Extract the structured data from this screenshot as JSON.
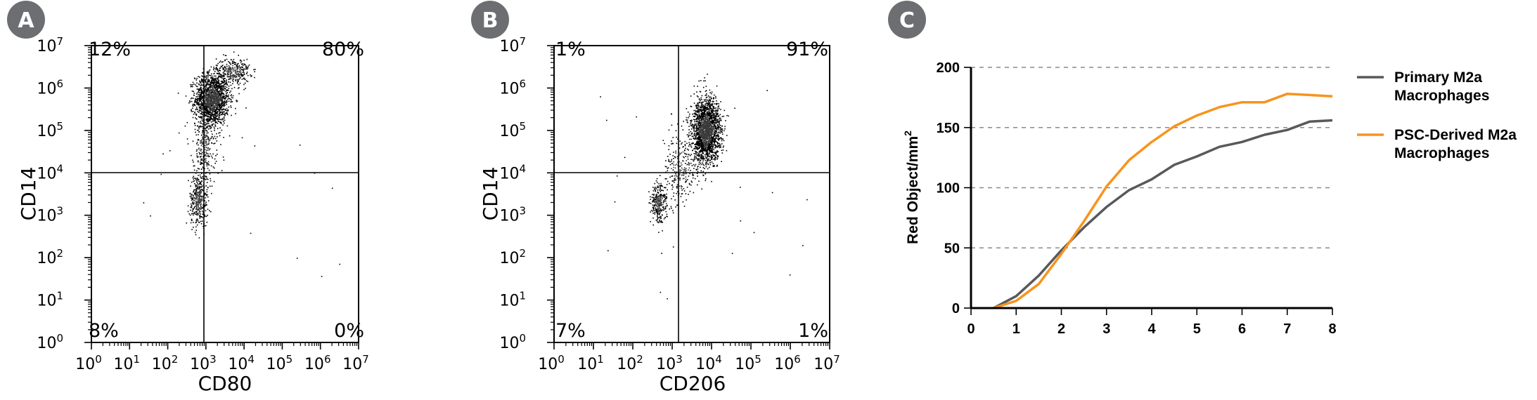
{
  "panels": [
    {
      "badge": "A",
      "type": "flow_cytometry_scatter",
      "xlabel": "CD80",
      "ylabel": "CD14",
      "tick_base": "10",
      "tick_exponents": [
        "0",
        "1",
        "2",
        "3",
        "4",
        "5",
        "6",
        "7"
      ],
      "quadrants": {
        "top_left": "12%",
        "top_right": "80%",
        "bottom_left": "8%",
        "bottom_right": "0%"
      },
      "gate": {
        "x_log10": 3.0,
        "y_log10": 4.0
      },
      "populations": [
        {
          "label": "main",
          "cx_log10": 3.15,
          "cy_log10": 5.75,
          "sx": 0.22,
          "sy": 0.3,
          "share": 0.62
        },
        {
          "label": "upper",
          "cx_log10": 3.7,
          "cy_log10": 6.4,
          "sx": 0.22,
          "sy": 0.16,
          "share": 0.12
        },
        {
          "label": "low",
          "cx_log10": 2.8,
          "cy_log10": 3.35,
          "sx": 0.12,
          "sy": 0.3,
          "share": 0.14
        },
        {
          "label": "stem",
          "cx_log10": 2.95,
          "cy_log10": 4.6,
          "sx": 0.14,
          "sy": 0.45,
          "share": 0.12
        }
      ]
    },
    {
      "badge": "B",
      "type": "flow_cytometry_scatter",
      "xlabel": "CD206",
      "ylabel": "CD14",
      "tick_base": "10",
      "tick_exponents": [
        "0",
        "1",
        "2",
        "3",
        "4",
        "5",
        "6",
        "7"
      ],
      "quadrants": {
        "top_left": "1%",
        "top_right": "91%",
        "bottom_left": "7%",
        "bottom_right": "1%"
      },
      "gate": {
        "x_log10": 3.0,
        "y_log10": 4.0
      },
      "populations": [
        {
          "label": "main",
          "cx_log10": 3.85,
          "cy_log10": 5.0,
          "sx": 0.18,
          "sy": 0.38,
          "share": 0.78
        },
        {
          "label": "low",
          "cx_log10": 2.65,
          "cy_log10": 3.3,
          "sx": 0.1,
          "sy": 0.22,
          "share": 0.12
        },
        {
          "label": "bridge",
          "cx_log10": 3.2,
          "cy_log10": 4.1,
          "sx": 0.22,
          "sy": 0.45,
          "share": 0.1
        }
      ]
    }
  ],
  "chart_data": {
    "badge": "C",
    "type": "line",
    "xlabel": "",
    "ylabel": "Red Object/mm",
    "ylabel_sup": "2",
    "xlim": [
      0,
      8
    ],
    "ylim": [
      0,
      200
    ],
    "xticks": [
      "0",
      "1",
      "2",
      "3",
      "4",
      "5",
      "6",
      "7",
      "8"
    ],
    "yticks": [
      "0",
      "50",
      "100",
      "150",
      "200"
    ],
    "grid": "horizontal dashed",
    "legend": "right",
    "series": [
      {
        "name": "Primary M2a Macrophages",
        "color": "#58595b",
        "x": [
          0.5,
          1,
          1.5,
          2,
          2.5,
          3,
          3.5,
          4,
          4.5,
          5,
          5.5,
          6,
          6.5,
          7,
          7.5,
          8
        ],
        "values": [
          0,
          10,
          27,
          48,
          67,
          84,
          98,
          107,
          119,
          126,
          134,
          138,
          144,
          148,
          155,
          156
        ]
      },
      {
        "name": "PSC-Derived M2a Macrophages",
        "color": "#f7941d",
        "x": [
          0.5,
          1,
          1.5,
          2,
          2.5,
          3,
          3.5,
          4,
          4.5,
          5,
          5.5,
          6,
          6.5,
          7,
          7.5,
          8
        ],
        "values": [
          0,
          6,
          20,
          45,
          72,
          101,
          123,
          138,
          151,
          160,
          167,
          171,
          171,
          178,
          177,
          176
        ]
      }
    ]
  }
}
